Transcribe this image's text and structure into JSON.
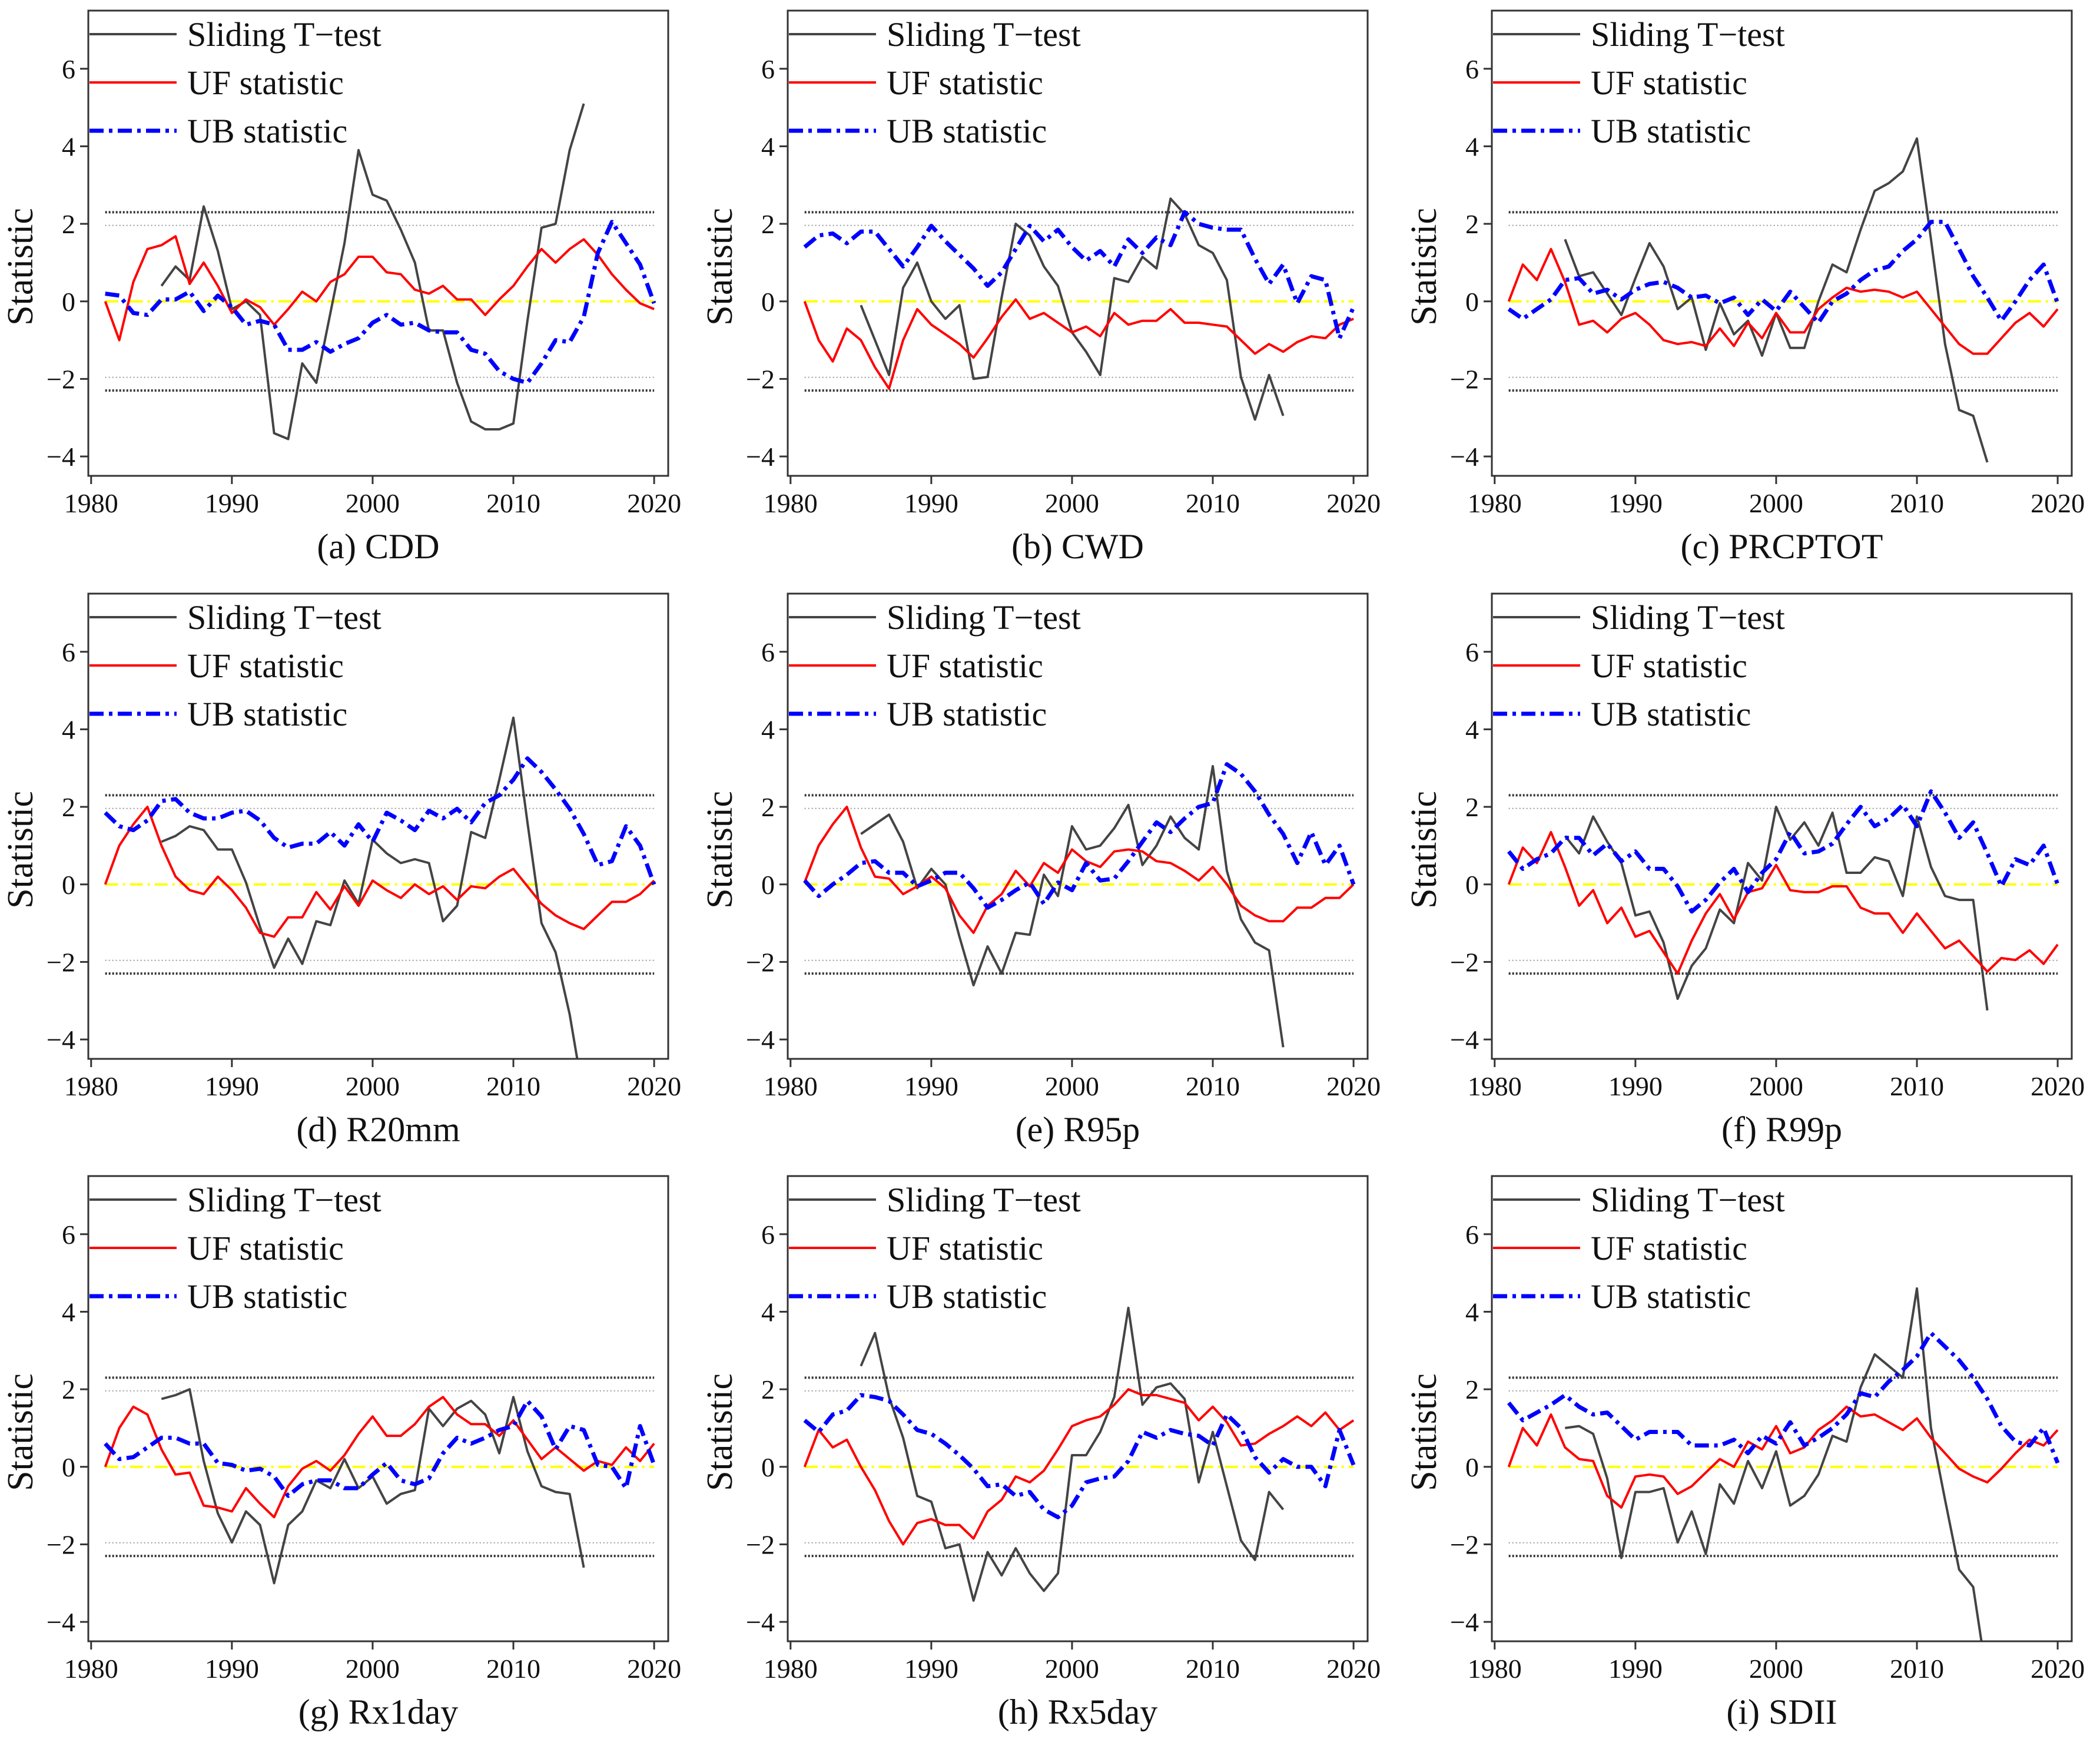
{
  "chart_data": {
    "type": "line",
    "layout": "3x3 grid",
    "ylabel": "Statistic",
    "xlim": [
      1979.8,
      2021
    ],
    "ylim": [
      -4.5,
      7.5
    ],
    "xticks": [
      1980,
      1990,
      2000,
      2010,
      2020
    ],
    "yticks": [
      -4,
      -2,
      0,
      2,
      4,
      6
    ],
    "reference_lines": [
      {
        "value": 2.3,
        "style": "dotted",
        "color": "#333333"
      },
      {
        "value": -2.3,
        "style": "dotted",
        "color": "#333333"
      },
      {
        "value": 1.96,
        "style": "dotted-thin",
        "color": "#999999"
      },
      {
        "value": -1.96,
        "style": "dotted-thin",
        "color": "#999999"
      },
      {
        "value": 0,
        "style": "dash-dot",
        "color": "#ffff00"
      }
    ],
    "legend": {
      "placement": "top-left",
      "entries": [
        "Sliding T−test",
        "UF statistic",
        "UB statistic"
      ]
    },
    "colors": {
      "ttest": "#444444",
      "uf": "#ff0000",
      "ub": "#0000ff"
    },
    "years_uf_ub": [
      1981,
      2020
    ],
    "years_ttest": [
      1985,
      2015
    ],
    "panels": [
      {
        "title": "(a) CDD",
        "uf": [
          0,
          -1.0,
          0.5,
          1.35,
          1.45,
          1.68,
          0.45,
          1.0,
          0.4,
          -0.3,
          0.05,
          -0.15,
          -0.6,
          -0.2,
          0.25,
          0.0,
          0.5,
          0.7,
          1.15,
          1.15,
          0.75,
          0.7,
          0.3,
          0.2,
          0.4,
          0.05,
          0.05,
          -0.35,
          0.05,
          0.4,
          0.9,
          1.35,
          1.0,
          1.35,
          1.6,
          1.2,
          0.7,
          0.3,
          -0.05,
          -0.2
        ],
        "ub": [
          0.2,
          0.15,
          -0.3,
          -0.35,
          0.05,
          0.05,
          0.25,
          -0.25,
          0.15,
          -0.15,
          -0.6,
          -0.5,
          -0.6,
          -1.25,
          -1.25,
          -1.05,
          -1.3,
          -1.1,
          -0.95,
          -0.55,
          -0.35,
          -0.6,
          -0.55,
          -0.75,
          -0.8,
          -0.8,
          -1.25,
          -1.35,
          -1.8,
          -2.0,
          -2.1,
          -1.6,
          -1.0,
          -1.05,
          -0.4,
          1.25,
          2.05,
          1.5,
          0.95,
          -0.05
        ],
        "ttest": [
          0.4,
          0.9,
          0.55,
          2.45,
          1.3,
          -0.2,
          0.0,
          -0.35,
          -3.4,
          -3.55,
          -1.6,
          -2.1,
          -0.3,
          1.5,
          3.9,
          2.75,
          2.6,
          1.85,
          1.0,
          -0.75,
          -0.75,
          -2.1,
          -3.1,
          -3.3,
          -3.3,
          -3.15,
          -0.5,
          1.9,
          2.0,
          3.9,
          5.1
        ]
      },
      {
        "title": "(b) CWD",
        "uf": [
          0,
          -1.0,
          -1.55,
          -0.7,
          -1.0,
          -1.7,
          -2.25,
          -1.0,
          -0.2,
          -0.6,
          -0.85,
          -1.1,
          -1.45,
          -0.95,
          -0.4,
          0.05,
          -0.45,
          -0.3,
          -0.55,
          -0.8,
          -0.65,
          -0.9,
          -0.3,
          -0.6,
          -0.5,
          -0.5,
          -0.2,
          -0.55,
          -0.55,
          -0.6,
          -0.65,
          -1.0,
          -1.35,
          -1.1,
          -1.3,
          -1.05,
          -0.9,
          -0.95,
          -0.6,
          -0.45
        ],
        "ub": [
          1.4,
          1.7,
          1.75,
          1.5,
          1.8,
          1.8,
          1.35,
          0.9,
          1.4,
          1.95,
          1.55,
          1.2,
          0.85,
          0.4,
          0.75,
          1.35,
          1.95,
          1.55,
          1.85,
          1.4,
          1.05,
          1.3,
          0.9,
          1.6,
          1.25,
          1.65,
          1.45,
          2.3,
          2.0,
          1.9,
          1.85,
          1.85,
          1.1,
          0.45,
          0.95,
          -0.05,
          0.65,
          0.55,
          -0.95,
          -0.15
        ],
        "ttest": [
          -0.1,
          -1.0,
          -1.9,
          0.35,
          1.0,
          0.0,
          -0.45,
          -0.1,
          -2.0,
          -1.95,
          0.1,
          2.0,
          1.7,
          0.9,
          0.4,
          -0.8,
          -1.3,
          -1.9,
          0.6,
          0.5,
          1.15,
          0.85,
          2.65,
          2.25,
          1.45,
          1.25,
          0.55,
          -1.95,
          -3.05,
          -1.9,
          -2.95
        ]
      },
      {
        "title": "(c) PRCPTOT",
        "uf": [
          0,
          0.95,
          0.55,
          1.35,
          0.5,
          -0.6,
          -0.5,
          -0.8,
          -0.45,
          -0.3,
          -0.6,
          -1.0,
          -1.1,
          -1.05,
          -1.15,
          -0.7,
          -1.15,
          -0.55,
          -0.95,
          -0.3,
          -0.8,
          -0.8,
          -0.2,
          0.1,
          0.35,
          0.25,
          0.3,
          0.25,
          0.1,
          0.25,
          -0.2,
          -0.65,
          -1.1,
          -1.35,
          -1.35,
          -0.95,
          -0.55,
          -0.3,
          -0.65,
          -0.2
        ],
        "ub": [
          -0.2,
          -0.45,
          -0.2,
          0.05,
          0.55,
          0.6,
          0.2,
          0.3,
          0.05,
          0.3,
          0.45,
          0.5,
          0.35,
          0.1,
          0.15,
          -0.05,
          0.1,
          -0.35,
          0.05,
          -0.25,
          0.25,
          -0.15,
          -0.55,
          0.0,
          0.2,
          0.55,
          0.8,
          0.9,
          1.3,
          1.6,
          2.05,
          2.05,
          1.35,
          0.65,
          0.1,
          -0.5,
          0.0,
          0.55,
          0.95,
          -0.05
        ],
        "ttest": [
          1.6,
          0.65,
          0.75,
          0.2,
          -0.35,
          0.6,
          1.5,
          0.9,
          -0.2,
          0.1,
          -1.25,
          -0.05,
          -0.85,
          -0.5,
          -1.4,
          -0.3,
          -1.2,
          -1.2,
          0.0,
          0.95,
          0.75,
          1.85,
          2.85,
          3.05,
          3.35,
          4.2,
          1.6,
          -1.1,
          -2.8,
          -2.95,
          -4.15
        ]
      },
      {
        "title": "(d) R20mm",
        "uf": [
          0,
          1.0,
          1.55,
          2.0,
          1.0,
          0.2,
          -0.15,
          -0.25,
          0.2,
          -0.15,
          -0.6,
          -1.25,
          -1.35,
          -0.85,
          -0.85,
          -0.2,
          -0.65,
          -0.05,
          -0.55,
          0.1,
          -0.15,
          -0.35,
          0.0,
          -0.25,
          -0.05,
          -0.4,
          -0.05,
          -0.1,
          0.2,
          0.4,
          -0.05,
          -0.5,
          -0.8,
          -1.0,
          -1.15,
          -0.8,
          -0.45,
          -0.45,
          -0.25,
          0.1
        ],
        "ub": [
          1.85,
          1.5,
          1.4,
          1.65,
          2.15,
          2.2,
          1.85,
          1.7,
          1.7,
          1.85,
          1.9,
          1.65,
          1.2,
          0.95,
          1.05,
          1.05,
          1.35,
          1.0,
          1.55,
          1.1,
          1.85,
          1.65,
          1.4,
          1.9,
          1.7,
          1.95,
          1.6,
          2.1,
          2.3,
          2.7,
          3.25,
          2.9,
          2.45,
          1.95,
          1.3,
          0.5,
          0.6,
          1.5,
          1.0,
          0.0
        ],
        "ttest": [
          1.1,
          1.25,
          1.5,
          1.4,
          0.9,
          0.9,
          0.05,
          -1.1,
          -2.15,
          -1.4,
          -2.05,
          -0.95,
          -1.05,
          0.1,
          -0.5,
          1.15,
          0.8,
          0.55,
          0.65,
          0.55,
          -0.95,
          -0.55,
          1.35,
          1.2,
          2.7,
          4.3,
          1.6,
          -1.0,
          -1.75,
          -3.35,
          -5.5
        ]
      },
      {
        "title": "(e) R95p",
        "uf": [
          0.05,
          1.0,
          1.55,
          2.0,
          0.95,
          0.2,
          0.15,
          -0.25,
          -0.05,
          0.2,
          -0.1,
          -0.8,
          -1.25,
          -0.55,
          -0.25,
          0.35,
          -0.05,
          0.55,
          0.3,
          0.9,
          0.6,
          0.45,
          0.85,
          0.9,
          0.85,
          0.6,
          0.55,
          0.35,
          0.1,
          0.45,
          0.0,
          -0.55,
          -0.8,
          -0.95,
          -0.95,
          -0.6,
          -0.6,
          -0.35,
          -0.35,
          0.0
        ],
        "ub": [
          0.1,
          -0.3,
          0.0,
          0.25,
          0.55,
          0.6,
          0.3,
          0.3,
          -0.05,
          0.1,
          0.3,
          0.3,
          -0.1,
          -0.6,
          -0.4,
          -0.15,
          0.05,
          -0.5,
          0.05,
          -0.15,
          0.55,
          0.1,
          0.15,
          0.6,
          1.1,
          1.6,
          1.35,
          1.7,
          2.0,
          2.1,
          3.1,
          2.85,
          2.4,
          1.8,
          1.3,
          0.55,
          1.35,
          0.5,
          1.0,
          0.0
        ],
        "ttest": [
          1.3,
          1.55,
          1.8,
          1.1,
          -0.1,
          0.4,
          0.0,
          -1.35,
          -2.6,
          -1.6,
          -2.3,
          -1.25,
          -1.3,
          0.25,
          -0.3,
          1.5,
          0.9,
          1.0,
          1.45,
          2.05,
          0.5,
          1.0,
          1.75,
          1.2,
          0.9,
          3.05,
          0.35,
          -0.9,
          -1.5,
          -1.7,
          -4.2
        ]
      },
      {
        "title": "(f) R99p",
        "uf": [
          0,
          0.95,
          0.55,
          1.35,
          0.45,
          -0.55,
          -0.15,
          -1.0,
          -0.6,
          -1.35,
          -1.2,
          -1.75,
          -2.3,
          -1.45,
          -0.75,
          -0.25,
          -0.9,
          -0.2,
          -0.1,
          0.5,
          -0.15,
          -0.2,
          -0.2,
          -0.05,
          -0.05,
          -0.6,
          -0.75,
          -0.75,
          -1.25,
          -0.75,
          -1.2,
          -1.65,
          -1.45,
          -1.85,
          -2.25,
          -1.9,
          -1.95,
          -1.7,
          -2.05,
          -1.55
        ],
        "ub": [
          0.85,
          0.4,
          0.65,
          0.8,
          1.2,
          1.2,
          0.75,
          1.05,
          0.6,
          0.85,
          0.4,
          0.4,
          -0.05,
          -0.7,
          -0.4,
          0.05,
          0.4,
          -0.2,
          0.3,
          0.65,
          1.35,
          0.8,
          0.85,
          1.05,
          1.55,
          2.0,
          1.5,
          1.7,
          2.05,
          1.5,
          2.4,
          1.85,
          1.2,
          1.6,
          0.8,
          -0.05,
          0.65,
          0.5,
          1.0,
          0.0
        ],
        "ttest": [
          1.25,
          0.8,
          1.75,
          1.1,
          0.55,
          -0.8,
          -0.7,
          -1.5,
          -2.95,
          -2.1,
          -1.65,
          -0.65,
          -1.0,
          0.55,
          0.1,
          2.0,
          1.15,
          1.6,
          1.0,
          1.85,
          0.3,
          0.3,
          0.7,
          0.6,
          -0.3,
          1.75,
          0.45,
          -0.3,
          -0.4,
          -0.4,
          -3.25
        ]
      },
      {
        "title": "(g) Rx1day",
        "uf": [
          0,
          1.0,
          1.55,
          1.35,
          0.45,
          -0.2,
          -0.15,
          -1.0,
          -1.05,
          -1.15,
          -0.55,
          -0.95,
          -1.3,
          -0.5,
          -0.05,
          0.15,
          -0.1,
          0.3,
          0.85,
          1.3,
          0.8,
          0.8,
          1.1,
          1.55,
          1.8,
          1.35,
          1.1,
          1.1,
          0.8,
          1.2,
          0.7,
          0.2,
          0.5,
          0.2,
          -0.1,
          0.15,
          0.05,
          0.5,
          0.15,
          0.6
        ],
        "ub": [
          0.6,
          0.2,
          0.25,
          0.5,
          0.75,
          0.75,
          0.6,
          0.6,
          0.1,
          0.05,
          -0.1,
          -0.05,
          -0.25,
          -0.75,
          -0.45,
          -0.35,
          -0.35,
          -0.55,
          -0.55,
          -0.2,
          0.1,
          -0.35,
          -0.45,
          -0.3,
          0.35,
          0.75,
          0.6,
          0.75,
          0.95,
          1.05,
          1.7,
          1.3,
          0.45,
          1.05,
          0.95,
          0.05,
          0.0,
          -0.55,
          1.05,
          0.05
        ],
        "ttest": [
          1.75,
          1.85,
          2.0,
          0.15,
          -1.2,
          -1.95,
          -1.15,
          -1.5,
          -3.0,
          -1.5,
          -1.15,
          -0.35,
          -0.55,
          0.2,
          -0.55,
          -0.25,
          -0.95,
          -0.7,
          -0.6,
          1.5,
          1.05,
          1.5,
          1.7,
          1.35,
          0.35,
          1.8,
          0.4,
          -0.5,
          -0.65,
          -0.7,
          -2.6
        ]
      },
      {
        "title": "(h) Rx5day",
        "uf": [
          0,
          0.95,
          0.5,
          0.7,
          0.0,
          -0.6,
          -1.4,
          -2.0,
          -1.45,
          -1.35,
          -1.5,
          -1.5,
          -1.85,
          -1.15,
          -0.85,
          -0.25,
          -0.4,
          -0.1,
          0.45,
          1.05,
          1.2,
          1.3,
          1.6,
          2.0,
          1.85,
          1.85,
          1.75,
          1.65,
          1.2,
          1.55,
          1.15,
          0.55,
          0.6,
          0.85,
          1.05,
          1.3,
          1.05,
          1.4,
          0.95,
          1.2
        ],
        "ub": [
          1.2,
          0.9,
          1.35,
          1.45,
          1.85,
          1.8,
          1.7,
          1.35,
          0.95,
          0.85,
          0.6,
          0.3,
          -0.05,
          -0.5,
          -0.45,
          -0.75,
          -0.65,
          -1.1,
          -1.3,
          -1.0,
          -0.4,
          -0.3,
          -0.25,
          0.15,
          0.9,
          0.75,
          0.95,
          0.85,
          0.8,
          0.55,
          1.35,
          1.0,
          0.25,
          -0.15,
          0.2,
          0.0,
          0.0,
          -0.5,
          0.95,
          0.05
        ],
        "ttest": [
          2.6,
          3.45,
          1.8,
          0.75,
          -0.75,
          -0.9,
          -2.1,
          -2.0,
          -3.45,
          -2.2,
          -2.8,
          -2.1,
          -2.75,
          -3.2,
          -2.75,
          0.3,
          0.3,
          0.9,
          1.8,
          4.1,
          1.6,
          2.05,
          2.15,
          1.75,
          -0.4,
          0.9,
          -0.5,
          -1.9,
          -2.4,
          -0.65,
          -1.1
        ]
      },
      {
        "title": "(i) SDII",
        "uf": [
          0,
          1.0,
          0.55,
          1.35,
          0.5,
          0.2,
          0.15,
          -0.75,
          -1.05,
          -0.25,
          -0.2,
          -0.25,
          -0.7,
          -0.5,
          -0.15,
          0.2,
          0.0,
          0.65,
          0.45,
          1.05,
          0.35,
          0.5,
          0.95,
          1.2,
          1.55,
          1.3,
          1.35,
          1.15,
          0.95,
          1.25,
          0.75,
          0.35,
          -0.05,
          -0.25,
          -0.4,
          -0.05,
          0.35,
          0.7,
          0.55,
          0.95
        ],
        "ub": [
          1.65,
          1.2,
          1.4,
          1.6,
          1.85,
          1.55,
          1.35,
          1.4,
          1.05,
          0.7,
          0.9,
          0.9,
          0.9,
          0.55,
          0.55,
          0.55,
          0.7,
          0.35,
          0.8,
          0.6,
          1.15,
          0.55,
          0.75,
          1.0,
          1.35,
          1.9,
          1.8,
          2.2,
          2.5,
          2.85,
          3.45,
          3.1,
          2.75,
          2.3,
          1.75,
          1.05,
          0.65,
          0.55,
          1.0,
          0.1
        ],
        "ttest": [
          1.0,
          1.05,
          0.85,
          -0.3,
          -2.35,
          -0.65,
          -0.65,
          -0.55,
          -1.95,
          -1.15,
          -2.25,
          -0.45,
          -0.95,
          0.15,
          -0.55,
          0.4,
          -1.0,
          -0.75,
          -0.2,
          0.8,
          0.65,
          2.05,
          2.9,
          2.6,
          2.3,
          4.6,
          1.0,
          -0.85,
          -2.65,
          -3.1,
          -5.5
        ]
      }
    ]
  }
}
